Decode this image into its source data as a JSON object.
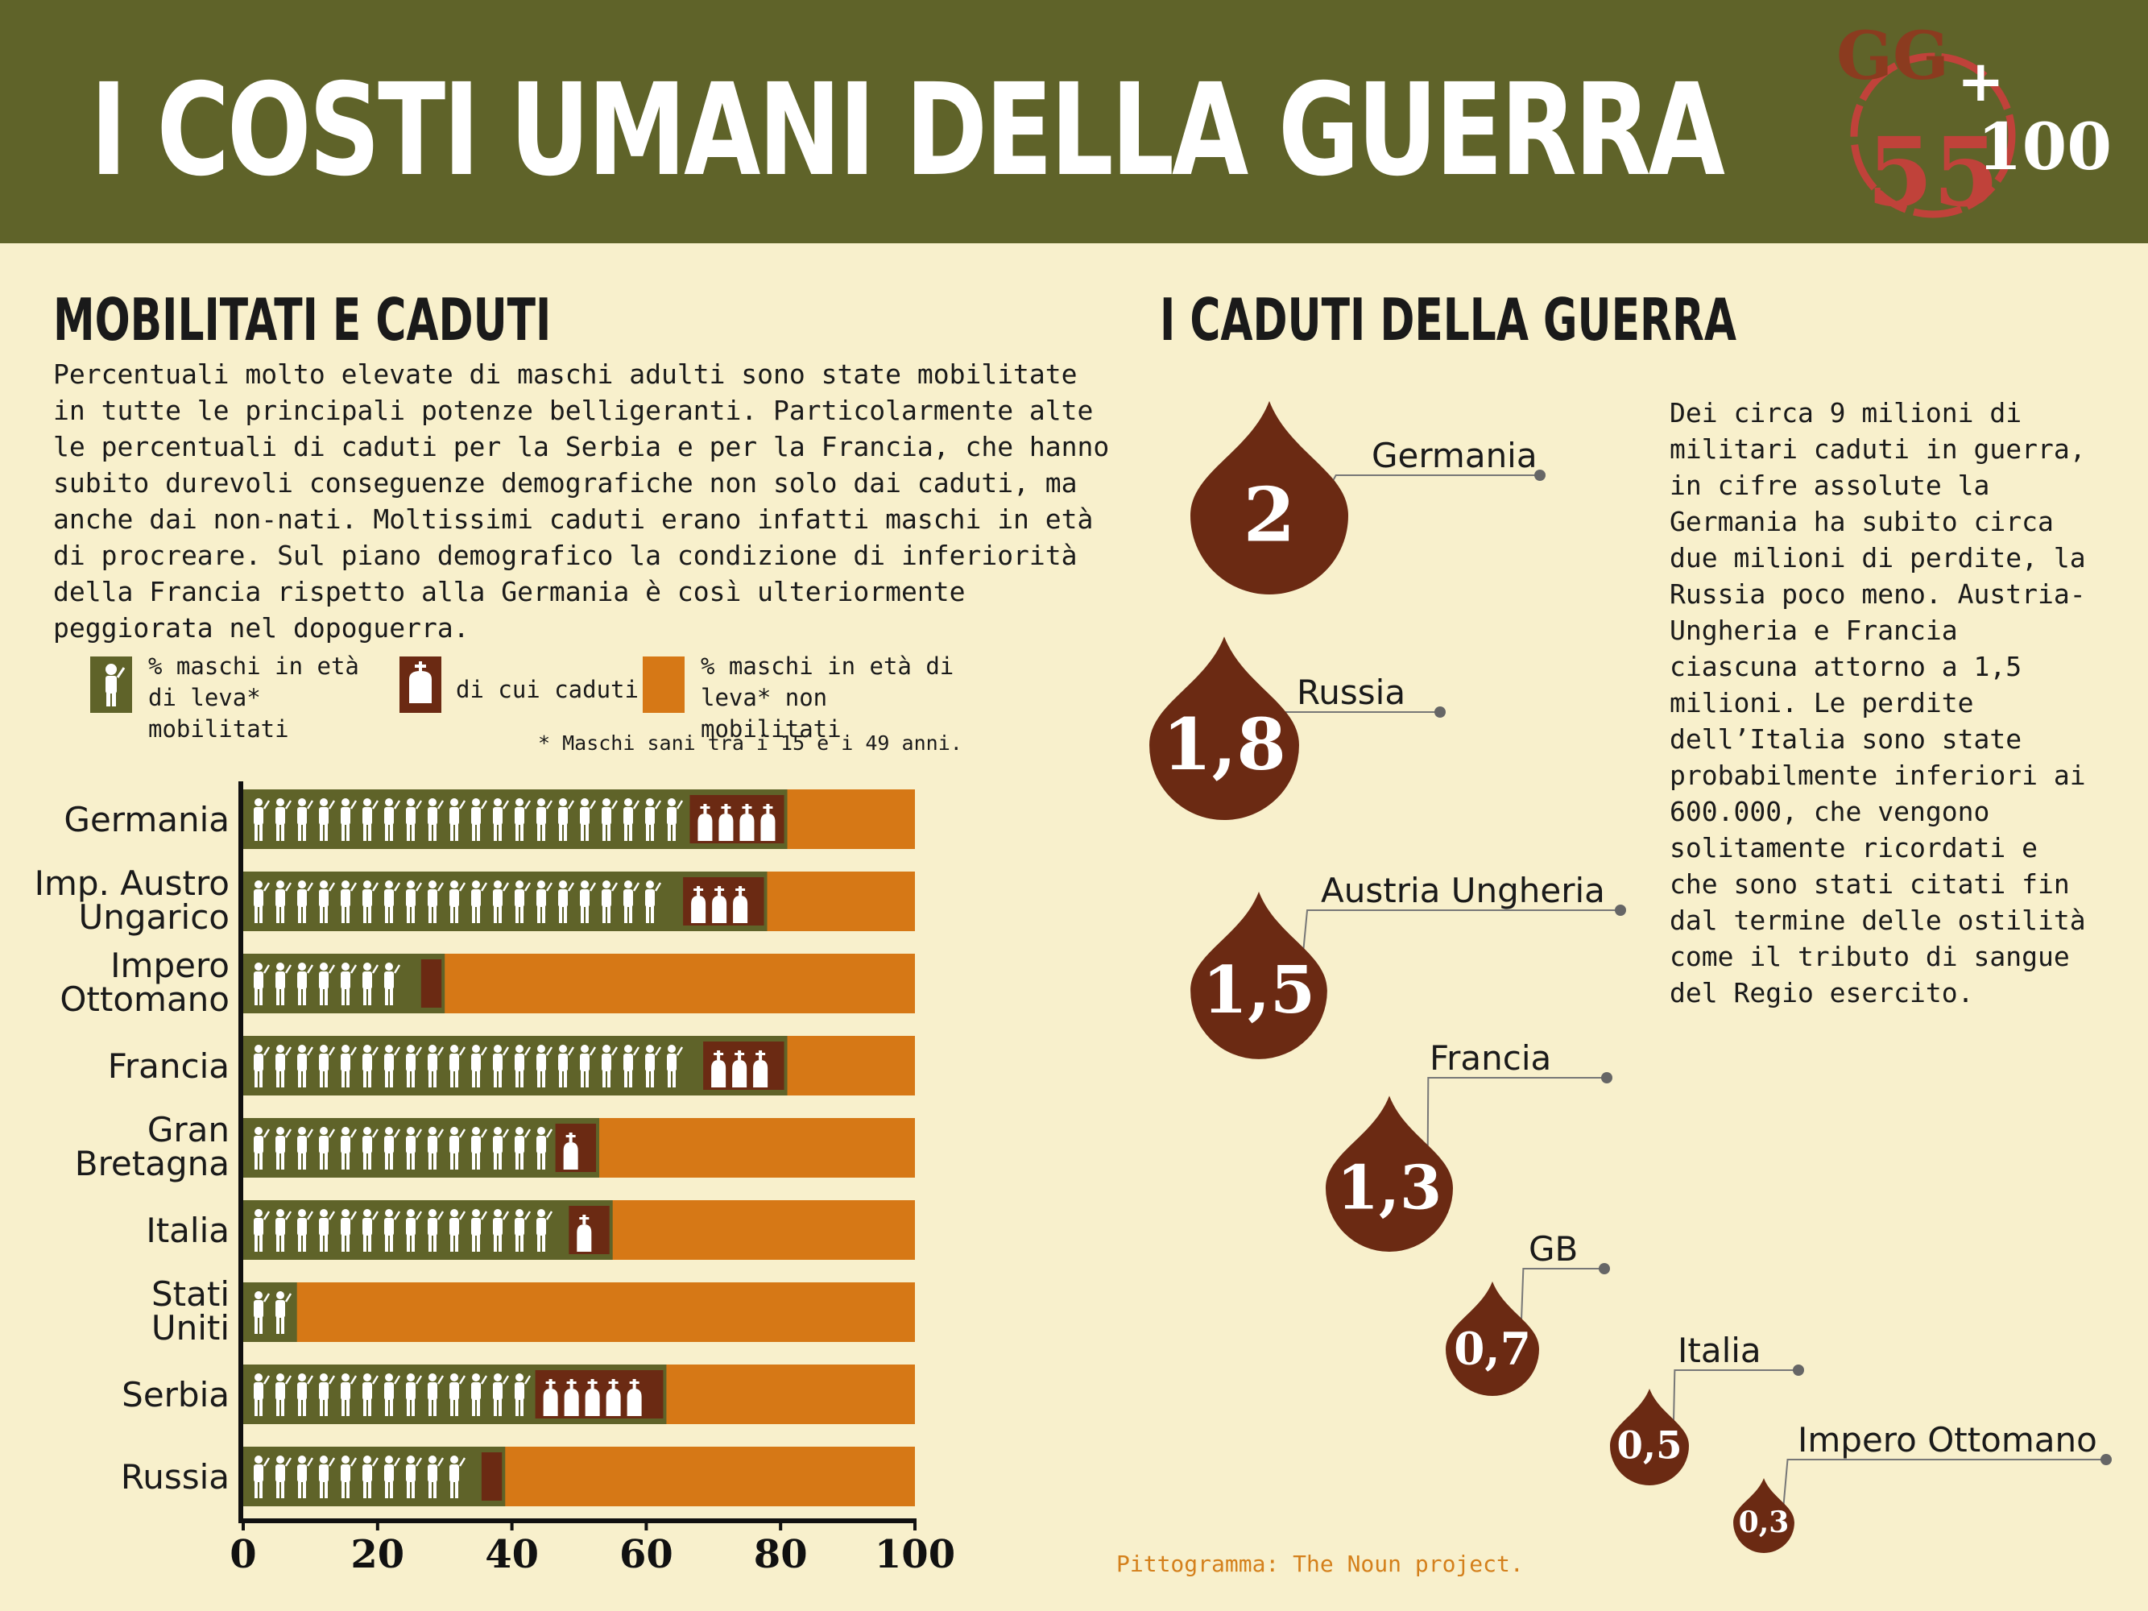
{
  "header": {
    "title": "I COSTI UMANI DELLA GUERRA",
    "logo": {
      "top": "GG",
      "middle": "55",
      "suffix": "100",
      "plus": "+"
    }
  },
  "left": {
    "title": "MOBILITATI E CADUTI",
    "paragraph": "Percentuali molto elevate di maschi adulti sono state mobilitate in tutte le principali potenze belligeranti. Particolarmente alte le percentuali di caduti per la Serbia e per la Francia, che hanno subito durevoli conseguenze demografiche non solo dai caduti, ma anche dai non-nati. Moltissimi caduti erano infatti maschi in età di procreare. Sul piano demografico la condizione di inferiorità della Francia rispetto alla Germania è così ulteriormente peggiorata nel dopoguerra.",
    "legend": {
      "mobilized": "% maschi in età di leva* mobilitati",
      "fallen": "di cui caduti",
      "not_mobilized": "% maschi in età di leva* non mobilitati"
    },
    "footnote": "* Maschi sani tra i 15 e i 49 anni."
  },
  "right": {
    "title": "I CADUTI DELLA GUERRA",
    "paragraph": "Dei circa 9 milioni di militari caduti in guerra, in cifre assolute la Germania ha subito circa due milioni di perdite, la Russia poco meno. Austria-Ungheria e Francia ciascuna attorno a 1,5 milioni. Le perdite dell’Italia sono state probabilmente inferiori ai 600.000, che vengono solitamente ricordati e che sono stati citati fin dal termine delle ostilità come il tributo di sangue del Regio esercito."
  },
  "credit": "Pittogramma: The Noun project.",
  "colors": {
    "header": "#5f6329",
    "background": "#f8f0cc",
    "mobilized": "#5f6329",
    "fallen": "#6b2a13",
    "not_mobilized": "#d67816",
    "drop": "#6b2a13"
  },
  "chart_data": [
    {
      "type": "bar",
      "orientation": "horizontal",
      "categories": [
        "Germania",
        "Imp. Austro Ungarico",
        "Impero Ottomano",
        "Francia",
        "Gran Bretagna",
        "Italia",
        "Stati Uniti",
        "Serbia",
        "Russia"
      ],
      "category_lines": [
        [
          "Germania"
        ],
        [
          "Imp. Austro",
          "Ungarico"
        ],
        [
          "Impero",
          "Ottomano"
        ],
        [
          "Francia"
        ],
        [
          "Gran",
          "Bretagna"
        ],
        [
          "Italia"
        ],
        [
          "Stati",
          "Uniti"
        ],
        [
          "Serbia"
        ],
        [
          "Russia"
        ]
      ],
      "series": [
        {
          "name": "% maschi in età di leva* mobilitati",
          "values": [
            81,
            78,
            30,
            81,
            53,
            55,
            8,
            63,
            39
          ]
        },
        {
          "name": "di cui caduti",
          "values": [
            15,
            13,
            4,
            13,
            7,
            7,
            0,
            20,
            4
          ]
        },
        {
          "name": "% maschi in età di leva* non mobilitati",
          "values": [
            19,
            22,
            70,
            19,
            47,
            45,
            92,
            37,
            61
          ]
        }
      ],
      "xlim": [
        0,
        100
      ],
      "xticks": [
        0,
        20,
        40,
        60,
        80,
        100
      ]
    },
    {
      "type": "bubble",
      "title": "I CADUTI DELLA GUERRA",
      "categories": [
        "Germania",
        "Russia",
        "Austria Ungheria",
        "Francia",
        "GB",
        "Italia",
        "Impero Ottomano"
      ],
      "values": [
        2,
        1.8,
        1.5,
        1.3,
        0.7,
        0.5,
        0.3
      ],
      "value_labels": [
        "2",
        "1,8",
        "1,5",
        "1,3",
        "0,7",
        "0,5",
        "0,3"
      ]
    }
  ]
}
